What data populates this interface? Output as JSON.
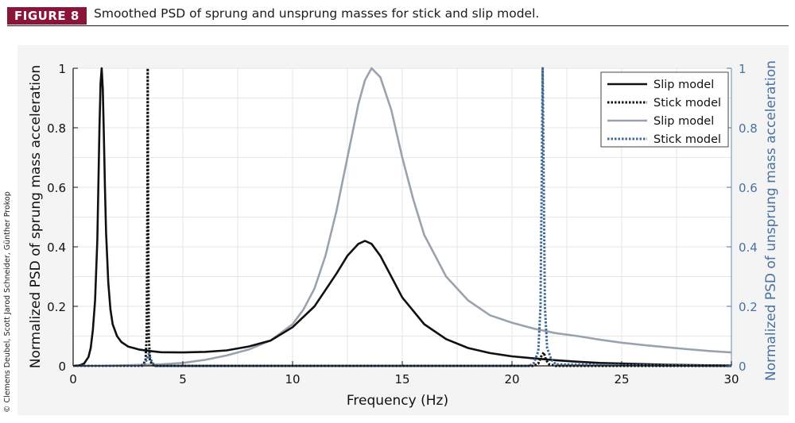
{
  "figure": {
    "badge": "FIGURE 8",
    "caption": "Smoothed PSD of sprung and unsprung masses for stick and slip model.",
    "copyright": "© Clemens Deubel, Scott Jarod Schneider, Günther Prokop"
  },
  "chart_data": {
    "type": "line",
    "xlabel": "Frequency (Hz)",
    "ylabel_left": "Normalized PSD of sprung mass acceleration",
    "ylabel_right": "Normalized PSD of unsprung mass acceleration",
    "xlim": [
      0,
      30
    ],
    "ylim_left": [
      0,
      1
    ],
    "ylim_right": [
      0,
      1
    ],
    "xticks": [
      0,
      5,
      10,
      15,
      20,
      25,
      30
    ],
    "yticks_left": [
      0,
      0.2,
      0.4,
      0.6,
      0.8,
      1
    ],
    "yticks_right": [
      0,
      0.2,
      0.4,
      0.6,
      0.8,
      1
    ],
    "grid": true,
    "legend_position": "top-right",
    "colors": {
      "black": "#111111",
      "gray": "#9aa3ad",
      "blue": "#3e6894"
    },
    "series": [
      {
        "name": "Slip model",
        "axis": "left",
        "color": "#111111",
        "style": "solid",
        "x": [
          0,
          0.3,
          0.5,
          0.7,
          0.8,
          0.9,
          1.0,
          1.1,
          1.15,
          1.2,
          1.25,
          1.3,
          1.35,
          1.4,
          1.45,
          1.5,
          1.6,
          1.7,
          1.8,
          2.0,
          2.2,
          2.5,
          3.0,
          3.5,
          4,
          5,
          6,
          7,
          8,
          9,
          10,
          11,
          12,
          12.5,
          13,
          13.3,
          13.6,
          14,
          14.5,
          15,
          16,
          17,
          18,
          19,
          20,
          21,
          22,
          23,
          24,
          25,
          26,
          27,
          28,
          29,
          30
        ],
        "y": [
          0,
          0.002,
          0.008,
          0.03,
          0.06,
          0.12,
          0.22,
          0.42,
          0.6,
          0.8,
          0.95,
          1.0,
          0.93,
          0.78,
          0.6,
          0.45,
          0.28,
          0.19,
          0.14,
          0.1,
          0.08,
          0.065,
          0.055,
          0.05,
          0.046,
          0.045,
          0.047,
          0.052,
          0.065,
          0.085,
          0.13,
          0.2,
          0.31,
          0.37,
          0.41,
          0.42,
          0.41,
          0.37,
          0.3,
          0.23,
          0.14,
          0.09,
          0.06,
          0.043,
          0.032,
          0.025,
          0.019,
          0.014,
          0.01,
          0.008,
          0.006,
          0.004,
          0.003,
          0.002,
          0.001
        ]
      },
      {
        "name": "Stick model",
        "axis": "left",
        "color": "#111111",
        "style": "dotted",
        "x": [
          0,
          3.1,
          3.2,
          3.3,
          3.35,
          3.38,
          3.4,
          3.42,
          3.45,
          3.5,
          3.6,
          3.7,
          5,
          21.0,
          21.2,
          21.35,
          21.45,
          21.55,
          21.7,
          22.0,
          30
        ],
        "y": [
          0,
          0,
          0.005,
          0.02,
          0.1,
          0.5,
          1.0,
          0.5,
          0.1,
          0.02,
          0.005,
          0,
          0,
          0,
          0.008,
          0.035,
          0.045,
          0.02,
          0.005,
          0,
          0
        ]
      },
      {
        "name": "Slip model",
        "axis": "right",
        "color": "#9aa3ad",
        "style": "solid",
        "x": [
          0,
          2,
          4,
          5,
          6,
          7,
          8,
          9,
          10,
          10.5,
          11,
          11.5,
          12,
          12.5,
          13,
          13.3,
          13.6,
          14,
          14.5,
          15,
          15.5,
          16,
          17,
          18,
          19,
          20,
          21,
          22,
          23,
          24,
          25,
          26,
          27,
          28,
          29,
          30
        ],
        "y": [
          0,
          0.001,
          0.005,
          0.01,
          0.02,
          0.035,
          0.055,
          0.085,
          0.14,
          0.19,
          0.26,
          0.37,
          0.52,
          0.7,
          0.88,
          0.96,
          1.0,
          0.97,
          0.86,
          0.7,
          0.56,
          0.44,
          0.3,
          0.22,
          0.17,
          0.145,
          0.125,
          0.11,
          0.1,
          0.088,
          0.078,
          0.07,
          0.063,
          0.056,
          0.05,
          0.045
        ]
      },
      {
        "name": "Stick model",
        "axis": "right",
        "color": "#3e6894",
        "style": "dotted",
        "x": [
          0,
          3.2,
          3.35,
          3.45,
          3.55,
          3.7,
          20.8,
          21.0,
          21.2,
          21.3,
          21.35,
          21.4,
          21.45,
          21.5,
          21.6,
          21.8,
          22.0,
          30
        ],
        "y": [
          0,
          0,
          0.02,
          0.04,
          0.02,
          0,
          0,
          0.01,
          0.05,
          0.2,
          0.6,
          1.0,
          0.6,
          0.2,
          0.06,
          0.02,
          0.005,
          0
        ]
      }
    ]
  }
}
